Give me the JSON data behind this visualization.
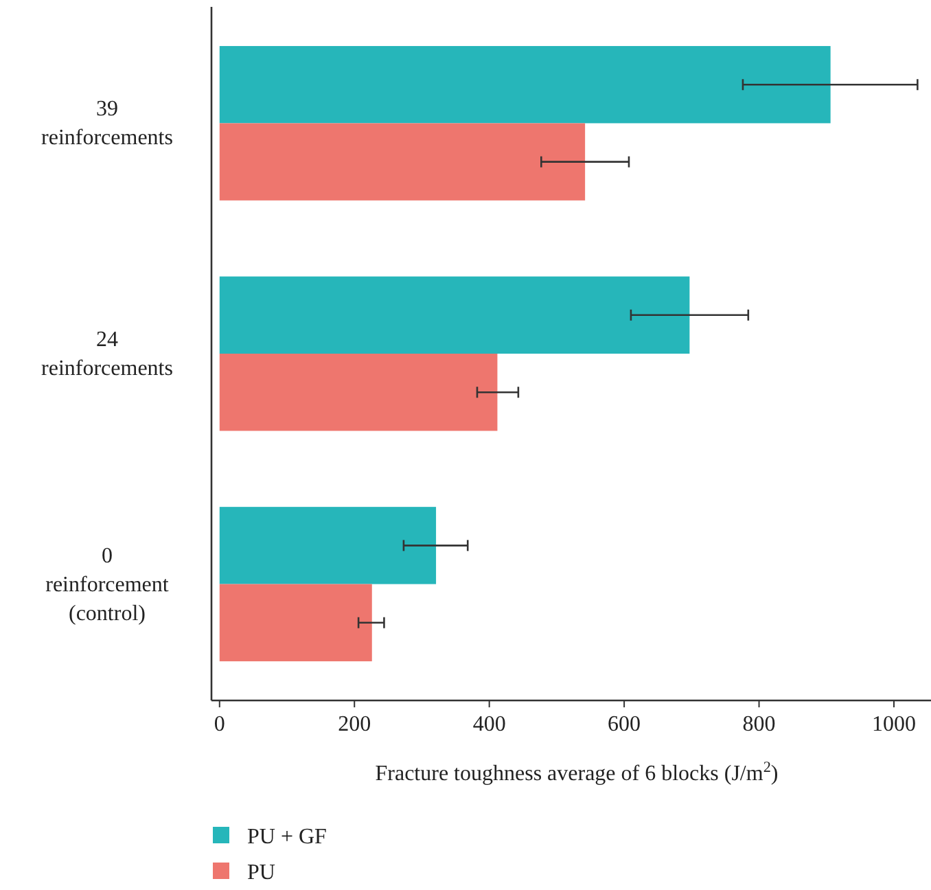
{
  "chart_data": {
    "type": "bar",
    "orientation": "horizontal",
    "xlabel": "Fracture toughness average of 6 blocks (J/m$^{2}$)",
    "categories": [
      "39\nreinforcements",
      "24\nreinforcements",
      "0\nreinforcement\n(control)"
    ],
    "series": [
      {
        "name": "PU + GF",
        "color": "#26b6ba",
        "values": [
          906,
          697,
          321
        ],
        "errors": [
          [
            776,
            1035
          ],
          [
            610,
            784
          ],
          [
            273,
            368
          ]
        ]
      },
      {
        "name": "PU",
        "color": "#ee766e",
        "values": [
          542,
          412,
          226
        ],
        "errors": [
          [
            477,
            607
          ],
          [
            382,
            443
          ],
          [
            206,
            244
          ]
        ]
      }
    ],
    "xlim": [
      -12,
      1055
    ],
    "xticks": [
      0,
      200,
      400,
      600,
      800,
      1000
    ],
    "grid": false,
    "legend": "bottom left"
  }
}
